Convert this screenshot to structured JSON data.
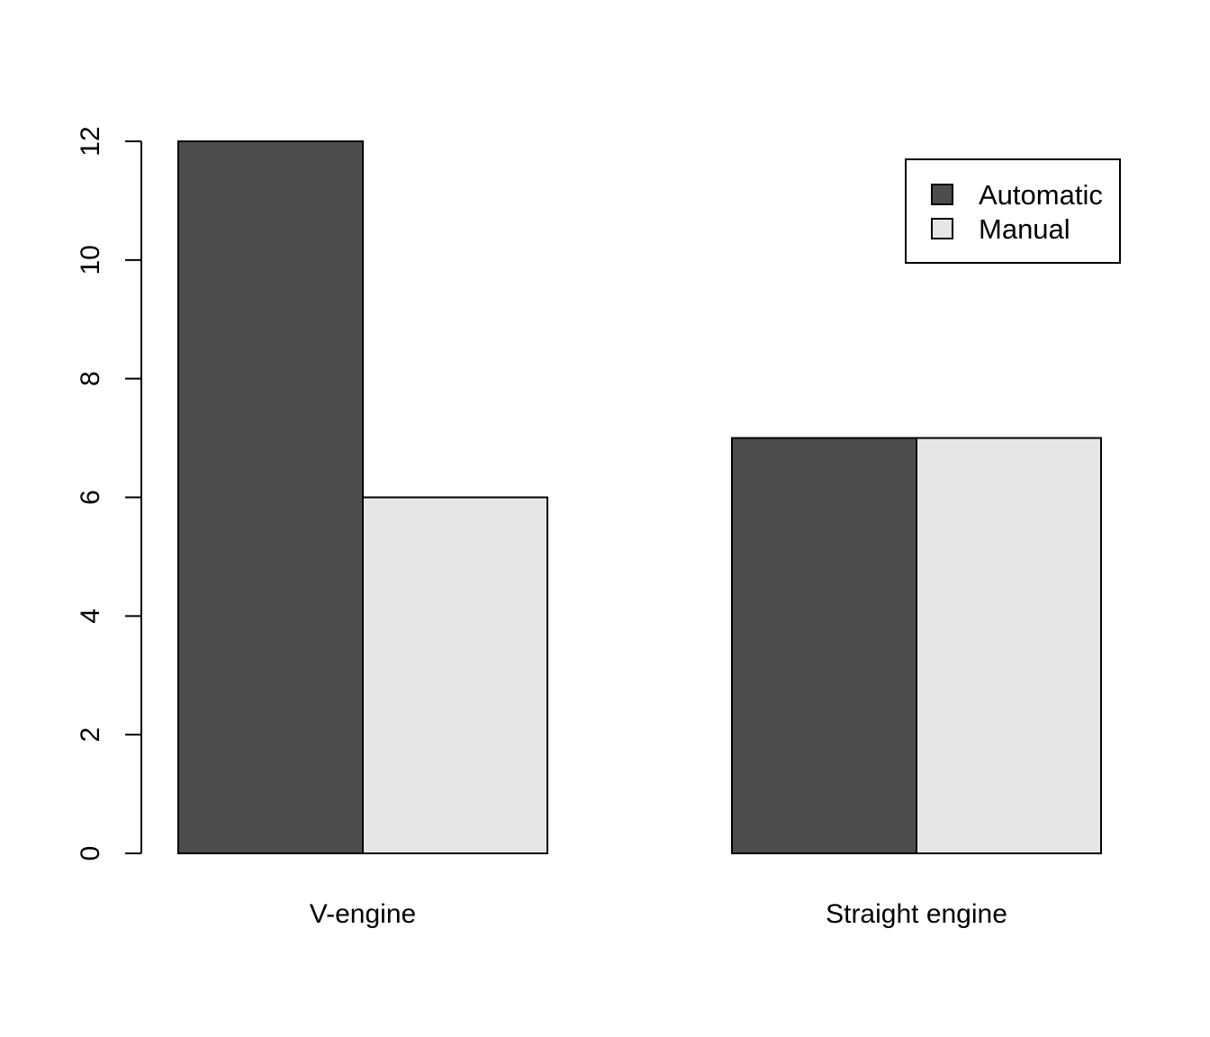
{
  "chart_data": {
    "type": "bar",
    "mode": "grouped",
    "title": "",
    "xlabel": "",
    "ylabel": "",
    "categories": [
      "V-engine",
      "Straight engine"
    ],
    "series": [
      {
        "name": "Automatic",
        "values": [
          12,
          7
        ],
        "color": "#4d4d4d"
      },
      {
        "name": "Manual",
        "values": [
          6,
          7
        ],
        "color": "#e6e6e6"
      }
    ],
    "ylim": [
      0,
      12
    ],
    "yticks": [
      0,
      2,
      4,
      6,
      8,
      10,
      12
    ],
    "grid": false,
    "legend_position": "top-right"
  }
}
